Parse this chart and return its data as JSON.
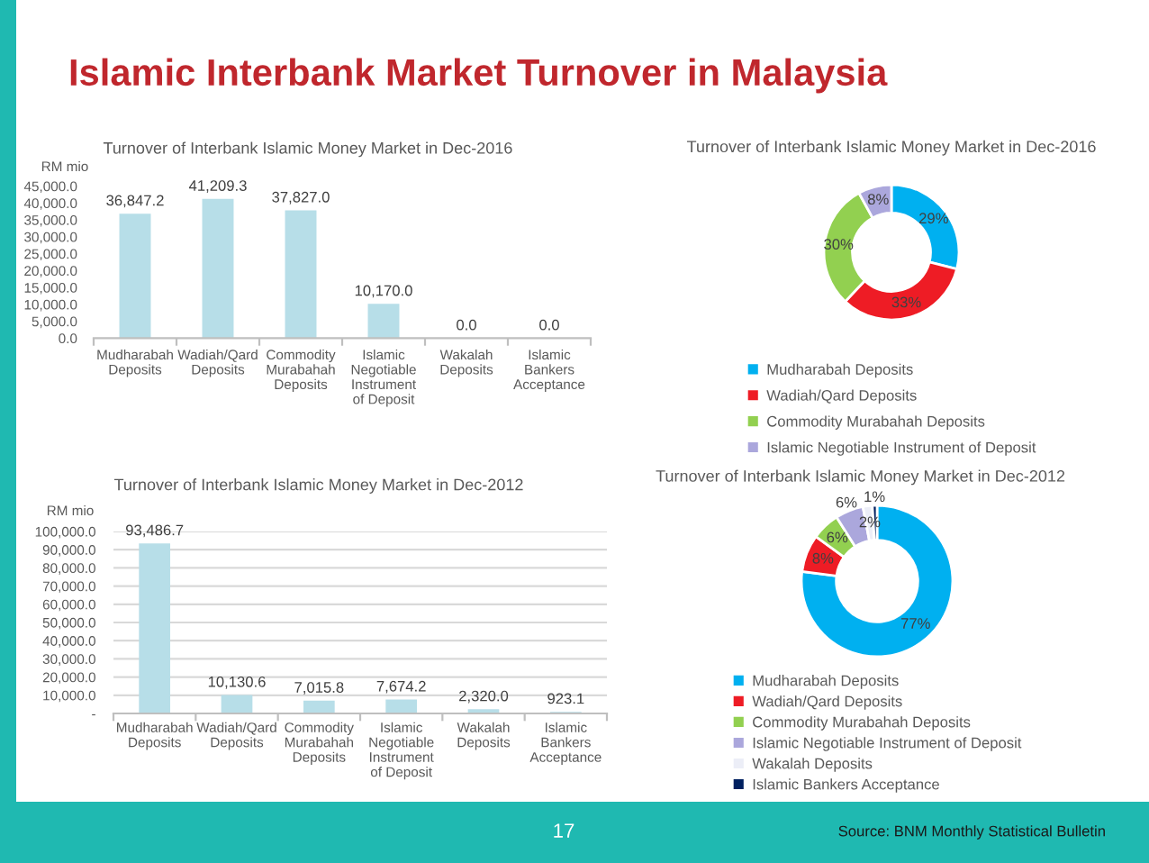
{
  "chart_data": [
    {
      "type": "other",
      "title": "Islamic Interbank Market Turnover in Malaysia"
    },
    {
      "type": "bar",
      "title": "Turnover of Interbank Islamic Money Market in Dec-2016",
      "ylabel": "RM mio",
      "categories": [
        "Mudharabah Deposits",
        "Wadiah/Qard Deposits",
        "Commodity Murabahah Deposits",
        "Islamic Negotiable Instrument of Deposit",
        "Wakalah Deposits",
        "Islamic Bankers Acceptance"
      ],
      "values": [
        36847.2,
        41209.3,
        37827.0,
        10170.0,
        0.0,
        0.0
      ],
      "value_labels": [
        "36,847.2",
        "41,209.3",
        "37,827.0",
        "10,170.0",
        "0.0",
        "0.0"
      ],
      "color": "#b7dee8",
      "ylim": [
        0,
        45000
      ],
      "yticks": [
        {
          "value": 0,
          "label": "0.0"
        },
        {
          "value": 5000,
          "label": "5,000.0"
        },
        {
          "value": 10000,
          "label": "10,000.0"
        },
        {
          "value": 15000,
          "label": "15,000.0"
        },
        {
          "value": 20000,
          "label": "20,000.0"
        },
        {
          "value": 25000,
          "label": "25,000.0"
        },
        {
          "value": 30000,
          "label": "30,000.0"
        },
        {
          "value": 35000,
          "label": "35,000.0"
        },
        {
          "value": 40000,
          "label": "40,000.0"
        },
        {
          "value": 45000,
          "label": "45,000.0"
        }
      ]
    },
    {
      "type": "donut",
      "title": "Turnover of Interbank Islamic Money Market in Dec-2016",
      "categories": [
        "Mudharabah Deposits",
        "Wadiah/Qard Deposits",
        "Commodity Murabahah Deposits",
        "Islamic Negotiable Instrument of Deposit"
      ],
      "values": [
        29,
        33,
        30,
        8
      ],
      "value_labels": [
        "29%",
        "33%",
        "30%",
        "8%"
      ],
      "colors": [
        "#00b0f0",
        "#ee1c25",
        "#92d050",
        "#aba7dc"
      ],
      "legend": "bottom"
    },
    {
      "type": "bar",
      "title": "Turnover of Interbank Islamic Money Market in Dec-2012",
      "ylabel": "RM mio",
      "categories": [
        "Mudharabah Deposits",
        "Wadiah/Qard Deposits",
        "Commodity Murabahah Deposits",
        "Islamic Negotiable Instrument of Deposit",
        "Wakalah Deposits",
        "Islamic Bankers Acceptance"
      ],
      "values": [
        93486.7,
        10130.6,
        7015.8,
        7674.2,
        2320.0,
        923.1
      ],
      "value_labels": [
        "93,486.7",
        "10,130.6",
        "7,015.8",
        "7,674.2",
        "2,320.0",
        "923.1"
      ],
      "color": "#b7dee8",
      "ylim": [
        0,
        100000
      ],
      "yticks": [
        {
          "value": 0,
          "label": "-"
        },
        {
          "value": 10000,
          "label": "10,000.0"
        },
        {
          "value": 20000,
          "label": "20,000.0"
        },
        {
          "value": 30000,
          "label": "30,000.0"
        },
        {
          "value": 40000,
          "label": "40,000.0"
        },
        {
          "value": 50000,
          "label": "50,000.0"
        },
        {
          "value": 60000,
          "label": "60,000.0"
        },
        {
          "value": 70000,
          "label": "70,000.0"
        },
        {
          "value": 80000,
          "label": "80,000.0"
        },
        {
          "value": 90000,
          "label": "90,000.0"
        },
        {
          "value": 100000,
          "label": "100,000.0"
        }
      ],
      "grid": "y"
    },
    {
      "type": "donut",
      "title": "Turnover of Interbank Islamic Money Market in Dec-2012",
      "categories": [
        "Mudharabah Deposits",
        "Wadiah/Qard Deposits",
        "Commodity Murabahah Deposits",
        "Islamic Negotiable Instrument of Deposit",
        "Wakalah Deposits",
        "Islamic Bankers Acceptance"
      ],
      "values": [
        77,
        8,
        6,
        6,
        2,
        1
      ],
      "value_labels": [
        "77%",
        "8%",
        "6%",
        "6%",
        "2%",
        "1%"
      ],
      "colors": [
        "#00b0f0",
        "#ee1c25",
        "#92d050",
        "#aba7dc",
        "#eceef7",
        "#002060"
      ],
      "legend": "bottom"
    },
    {
      "type": "other",
      "annotations": [
        "17",
        "Source: BNM Monthly Statistical Bulletin"
      ]
    }
  ]
}
